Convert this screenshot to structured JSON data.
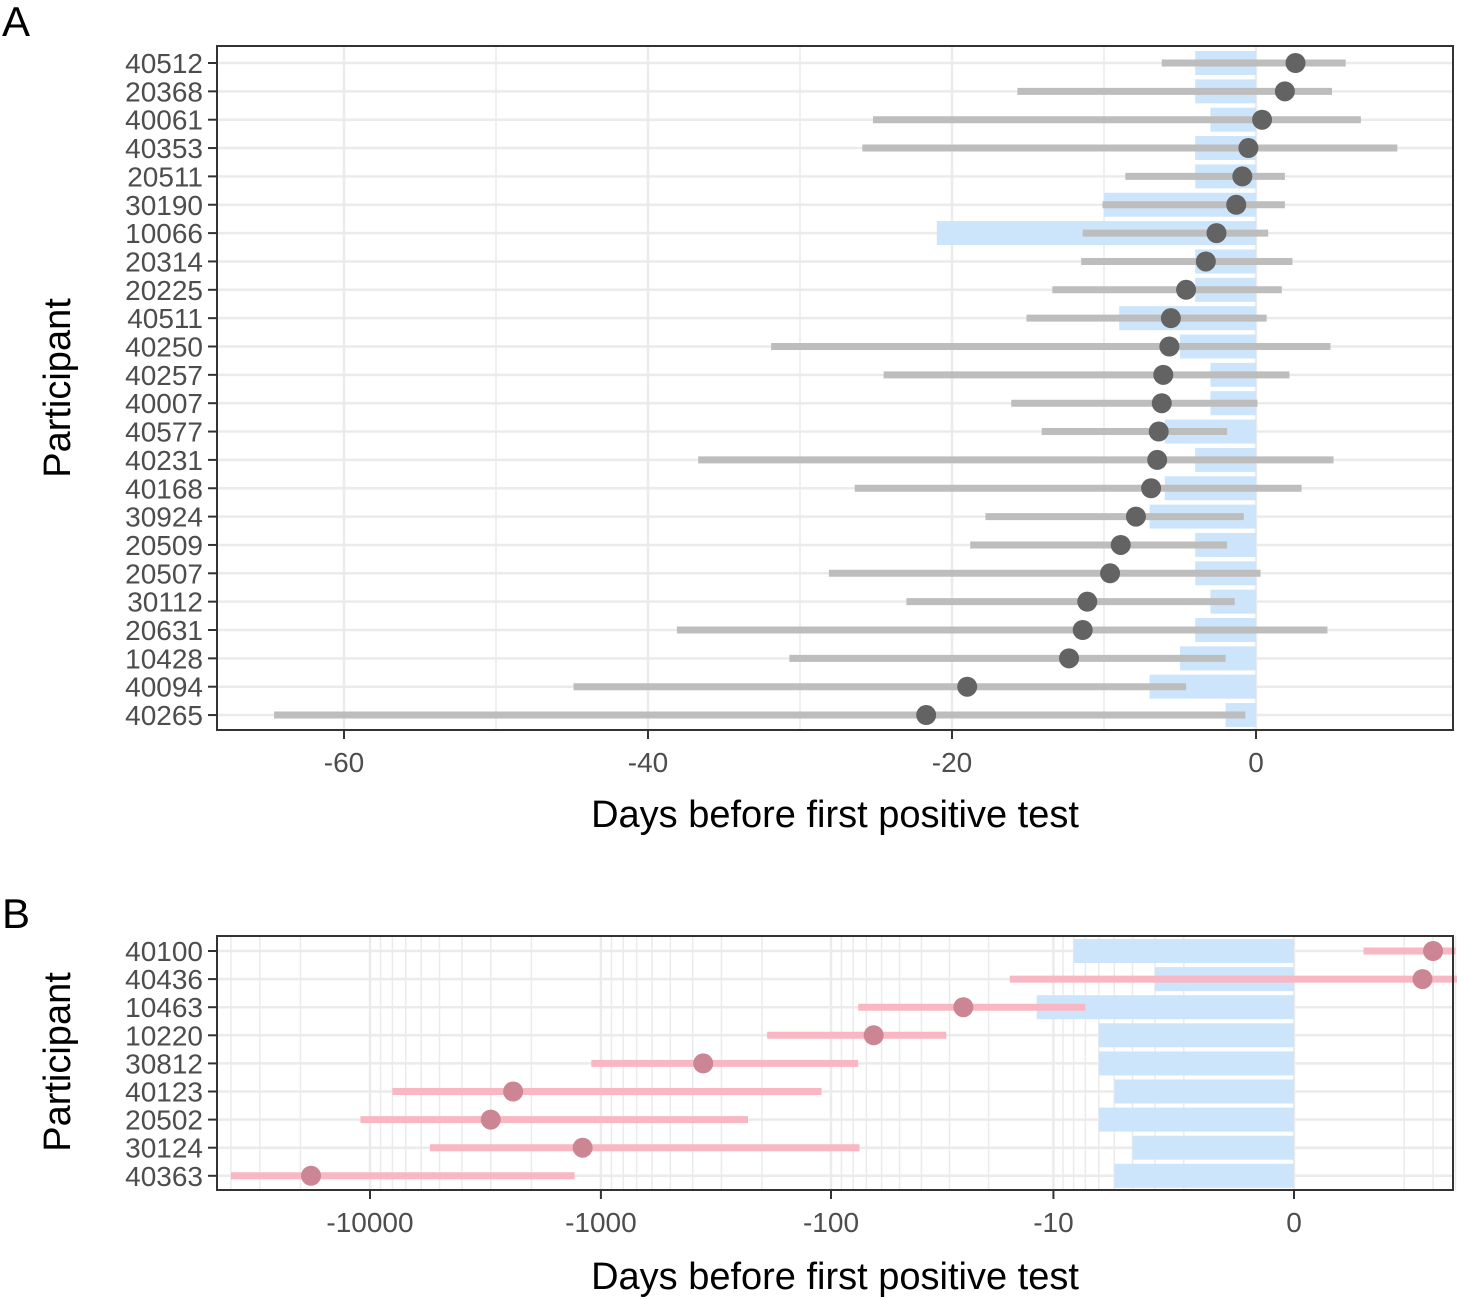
{
  "chart_data": [
    {
      "panel": "A",
      "type": "dot-range",
      "xlabel": "Days before first positive test",
      "ylabel": "Participant",
      "xlim": [
        -68,
        10
      ],
      "xticks": [
        -60,
        -40,
        -20,
        0
      ],
      "xtick_labels": [
        "-60",
        "-40",
        "-20",
        "0"
      ],
      "x_scale": "linear",
      "grid": true,
      "colors": {
        "point": "#636363",
        "range": "#bdbdbd",
        "window": "#cce5fb"
      },
      "participants": [
        {
          "id": "40512",
          "point": 2.6,
          "range": [
            -6.2,
            5.9
          ],
          "window": [
            -4,
            0
          ]
        },
        {
          "id": "20368",
          "point": 1.9,
          "range": [
            -15.7,
            5.0
          ],
          "window": [
            -4,
            0
          ]
        },
        {
          "id": "40061",
          "point": 0.4,
          "range": [
            -25.2,
            6.9
          ],
          "window": [
            -3,
            0
          ]
        },
        {
          "id": "40353",
          "point": -0.5,
          "range": [
            -25.9,
            9.3
          ],
          "window": [
            -4,
            0
          ]
        },
        {
          "id": "20511",
          "point": -0.9,
          "range": [
            -8.6,
            1.9
          ],
          "window": [
            -4,
            0
          ]
        },
        {
          "id": "30190",
          "point": -1.3,
          "range": [
            -10.1,
            1.9
          ],
          "window": [
            -10,
            0
          ]
        },
        {
          "id": "10066",
          "point": -2.6,
          "range": [
            -11.4,
            0.8
          ],
          "window": [
            -21,
            0
          ]
        },
        {
          "id": "20314",
          "point": -3.3,
          "range": [
            -11.5,
            2.4
          ],
          "window": [
            -4,
            0
          ]
        },
        {
          "id": "20225",
          "point": -4.6,
          "range": [
            -13.4,
            1.7
          ],
          "window": [
            -4,
            0
          ]
        },
        {
          "id": "40511",
          "point": -5.6,
          "range": [
            -15.1,
            0.7
          ],
          "window": [
            -9,
            0
          ]
        },
        {
          "id": "40250",
          "point": -5.7,
          "range": [
            -31.9,
            4.9
          ],
          "window": [
            -5,
            0
          ]
        },
        {
          "id": "40257",
          "point": -6.1,
          "range": [
            -24.5,
            2.2
          ],
          "window": [
            -3,
            0
          ]
        },
        {
          "id": "40007",
          "point": -6.2,
          "range": [
            -16.1,
            0.1
          ],
          "window": [
            -3,
            0
          ]
        },
        {
          "id": "40577",
          "point": -6.4,
          "range": [
            -14.1,
            -1.9
          ],
          "window": [
            -6,
            0
          ]
        },
        {
          "id": "40231",
          "point": -6.5,
          "range": [
            -36.7,
            5.1
          ],
          "window": [
            -4,
            0
          ]
        },
        {
          "id": "40168",
          "point": -6.9,
          "range": [
            -26.4,
            3.0
          ],
          "window": [
            -6,
            0
          ]
        },
        {
          "id": "30924",
          "point": -7.9,
          "range": [
            -17.8,
            -0.8
          ],
          "window": [
            -7,
            0
          ]
        },
        {
          "id": "20509",
          "point": -8.9,
          "range": [
            -18.8,
            -1.9
          ],
          "window": [
            -4,
            0
          ]
        },
        {
          "id": "20507",
          "point": -9.6,
          "range": [
            -28.1,
            0.3
          ],
          "window": [
            -4,
            0
          ]
        },
        {
          "id": "30112",
          "point": -11.1,
          "range": [
            -23.0,
            -1.4
          ],
          "window": [
            -3,
            0
          ]
        },
        {
          "id": "20631",
          "point": -11.4,
          "range": [
            -38.1,
            4.7
          ],
          "window": [
            -4,
            0
          ]
        },
        {
          "id": "10428",
          "point": -12.3,
          "range": [
            -30.7,
            -2.0
          ],
          "window": [
            -5,
            0
          ]
        },
        {
          "id": "40094",
          "point": -19.0,
          "range": [
            -44.9,
            -4.6
          ],
          "window": [
            -7,
            0
          ]
        },
        {
          "id": "40265",
          "point": -21.7,
          "range": [
            -64.6,
            -0.7
          ],
          "window": [
            -2,
            0
          ]
        }
      ]
    },
    {
      "panel": "B",
      "type": "dot-range",
      "xlabel": "Days before first positive test",
      "ylabel": "Participant",
      "x_scale": "pseudo-log (signed log10(1+|x|))",
      "xticks": [
        -10000,
        -1000,
        -100,
        -10,
        0
      ],
      "xtick_labels": [
        "-10000",
        "-1000",
        "-100",
        "-10",
        "0"
      ],
      "grid": true,
      "colors": {
        "point": "#cc8593",
        "range": "#f9b7c3",
        "window": "#cce5fb"
      },
      "participants": [
        {
          "id": "40100",
          "point": 3,
          "range": [
            1,
            4
          ],
          "window": [
            -8,
            0
          ]
        },
        {
          "id": "40436",
          "point": 2.6,
          "range": [
            -16,
            10
          ],
          "window": [
            -3,
            0
          ]
        },
        {
          "id": "10463",
          "point": -26,
          "range": [
            -76,
            -7
          ],
          "window": [
            -12,
            0
          ]
        },
        {
          "id": "10220",
          "point": -65,
          "range": [
            -190,
            -31
          ],
          "window": [
            -6,
            0
          ]
        },
        {
          "id": "30812",
          "point": -360,
          "range": [
            -1100,
            -76
          ],
          "window": [
            -6,
            0
          ]
        },
        {
          "id": "40123",
          "point": -2400,
          "range": [
            -8000,
            -110
          ],
          "window": [
            -5,
            0
          ]
        },
        {
          "id": "20502",
          "point": -3000,
          "range": [
            -11000,
            -230
          ],
          "window": [
            -6,
            0
          ]
        },
        {
          "id": "30124",
          "point": -1200,
          "range": [
            -5500,
            -75
          ],
          "window": [
            -4,
            0
          ]
        },
        {
          "id": "40363",
          "point": -18000,
          "range": [
            -40000,
            -1300
          ],
          "window": [
            -5,
            0
          ]
        }
      ]
    }
  ],
  "panel_labels": {
    "a": "A",
    "b": "B"
  },
  "texts": {
    "a_xlabel": "Days before first positive test",
    "a_ylabel": "Participant",
    "b_xlabel": "Days before first positive test",
    "b_ylabel": "Participant"
  }
}
